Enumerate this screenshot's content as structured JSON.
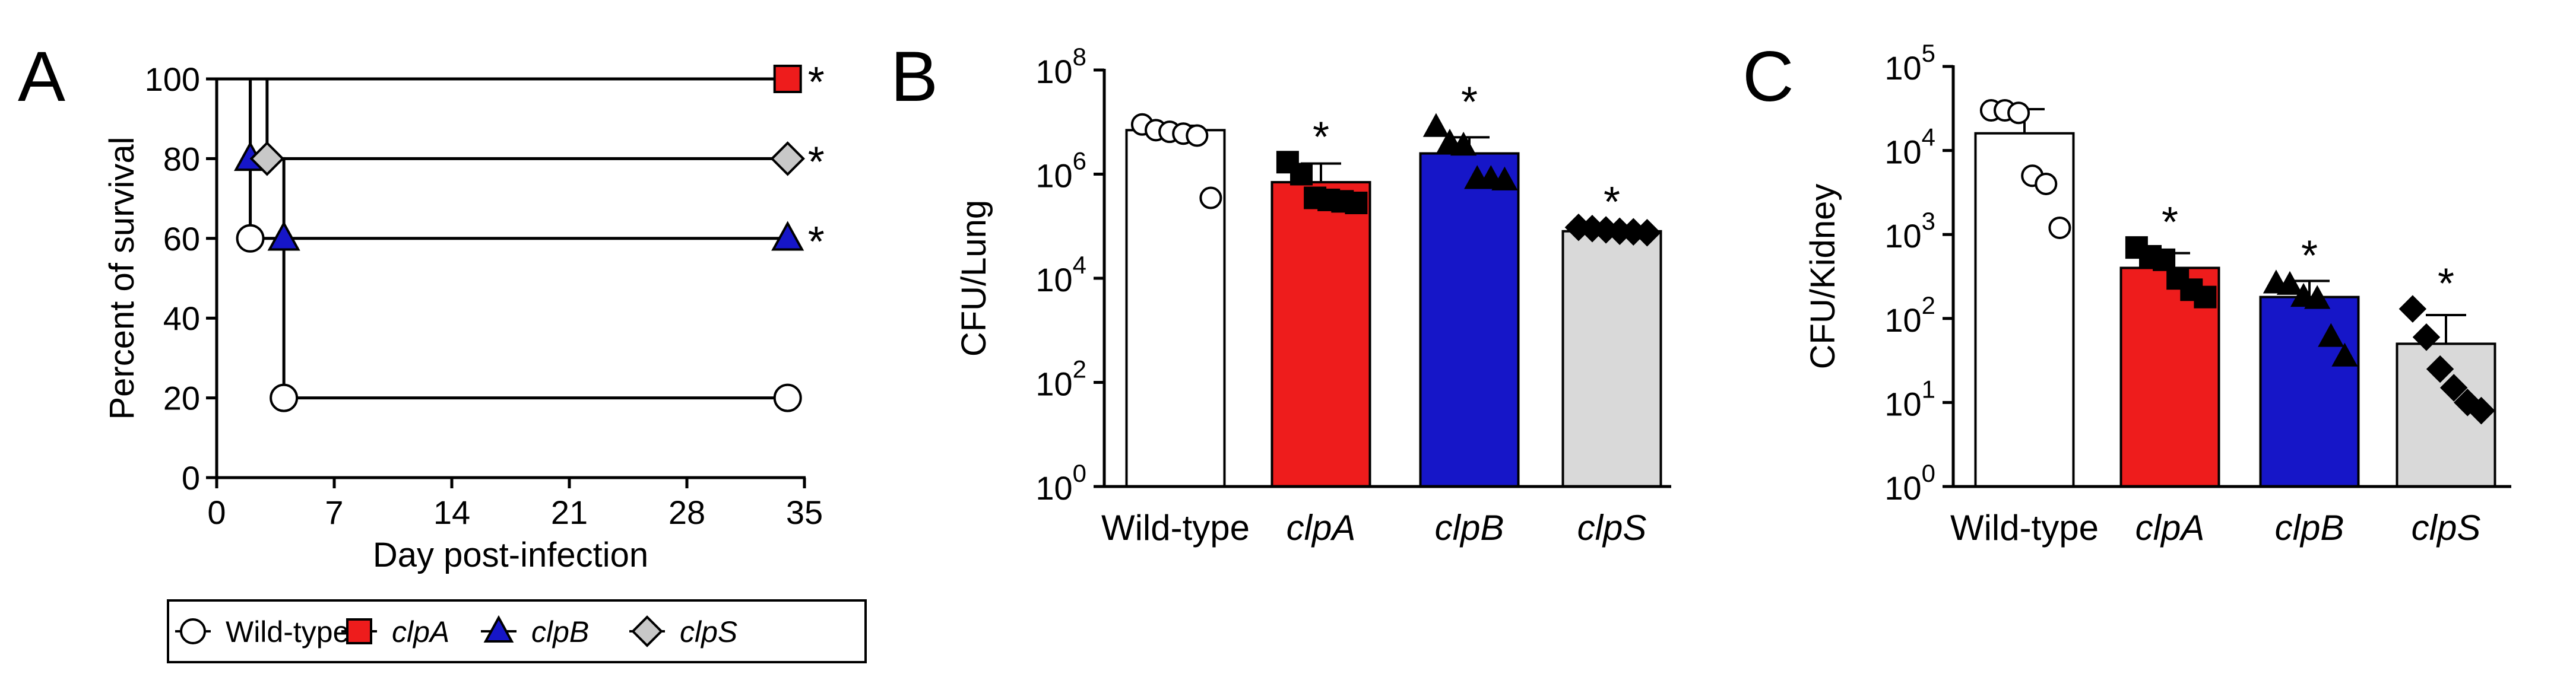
{
  "chart_data": [
    {
      "panel": "A",
      "type": "line",
      "subtype": "kaplan-meier",
      "xlabel": "Day post-infection",
      "ylabel": "Percent of survival",
      "xlim": [
        0,
        35
      ],
      "ylim": [
        0,
        100
      ],
      "xticks": [
        0,
        7,
        14,
        21,
        28,
        35
      ],
      "yticks": [
        0,
        20,
        40,
        60,
        80,
        100
      ],
      "series": [
        {
          "name": "Wild-type",
          "italic": false,
          "marker": "circle",
          "color": "#ffffff",
          "steps": [
            [
              0,
              100
            ],
            [
              2,
              60
            ],
            [
              4,
              20
            ],
            [
              34,
              20
            ]
          ],
          "marker_points": [
            [
              2,
              60
            ],
            [
              4,
              20
            ],
            [
              34,
              20
            ]
          ],
          "significant": false
        },
        {
          "name": "clpA",
          "italic": true,
          "marker": "square",
          "color": "#ee1c1c",
          "steps": [
            [
              0,
              100
            ],
            [
              34,
              100
            ]
          ],
          "marker_points": [
            [
              34,
              100
            ]
          ],
          "significant": true
        },
        {
          "name": "clpB",
          "italic": true,
          "marker": "triangle",
          "color": "#1616c8",
          "steps": [
            [
              0,
              100
            ],
            [
              2,
              80
            ],
            [
              4,
              60
            ],
            [
              34,
              60
            ]
          ],
          "marker_points": [
            [
              2,
              80
            ],
            [
              4,
              60
            ],
            [
              34,
              60
            ]
          ],
          "significant": true
        },
        {
          "name": "clpS",
          "italic": true,
          "marker": "diamond",
          "color": "#c8c8c8",
          "steps": [
            [
              0,
              100
            ],
            [
              3,
              80
            ],
            [
              34,
              80
            ]
          ],
          "marker_points": [
            [
              3,
              80
            ],
            [
              34,
              80
            ]
          ],
          "significant": true
        }
      ],
      "annotation": "*"
    },
    {
      "panel": "B",
      "type": "bar",
      "scale": "log",
      "ylabel": "CFU/Lung",
      "ylim": [
        1,
        100000000
      ],
      "yticks": [
        {
          "base": "10",
          "exp": "0"
        },
        {
          "base": "10",
          "exp": "2"
        },
        {
          "base": "10",
          "exp": "4"
        },
        {
          "base": "10",
          "exp": "6"
        },
        {
          "base": "10",
          "exp": "8"
        }
      ],
      "categories": [
        {
          "label": "Wild-type",
          "italic": false
        },
        {
          "label": "clpA",
          "italic": true
        },
        {
          "label": "clpB",
          "italic": true
        },
        {
          "label": "clpS",
          "italic": true
        }
      ],
      "values": [
        7000000,
        700000,
        2500000,
        80000
      ],
      "errors": [
        1500000,
        900000,
        2600000,
        8000
      ],
      "colors": [
        "#ffffff",
        "#ee1c1c",
        "#1616c8",
        "#d9d9d9"
      ],
      "markers": [
        "circle",
        "square",
        "triangle",
        "diamond"
      ],
      "points": [
        [
          9000000,
          7000000,
          6500000,
          6000000,
          5500000,
          350000
        ],
        [
          1700000,
          1000000,
          350000,
          320000,
          300000,
          280000
        ],
        [
          8000000,
          4000000,
          3500000,
          800000,
          800000,
          750000
        ],
        [
          95000,
          90000,
          85000,
          80000,
          78000,
          75000
        ]
      ],
      "annotations": [
        "",
        "*",
        "*",
        "*"
      ]
    },
    {
      "panel": "C",
      "type": "bar",
      "scale": "log",
      "ylabel": "CFU/Kidney",
      "ylim": [
        1,
        100000
      ],
      "yticks": [
        {
          "base": "10",
          "exp": "0"
        },
        {
          "base": "10",
          "exp": "1"
        },
        {
          "base": "10",
          "exp": "2"
        },
        {
          "base": "10",
          "exp": "3"
        },
        {
          "base": "10",
          "exp": "4"
        },
        {
          "base": "10",
          "exp": "5"
        }
      ],
      "categories": [
        {
          "label": "Wild-type",
          "italic": false
        },
        {
          "label": "clpA",
          "italic": true
        },
        {
          "label": "clpB",
          "italic": true
        },
        {
          "label": "clpS",
          "italic": true
        }
      ],
      "values": [
        16000,
        400,
        180,
        50
      ],
      "errors": [
        15000,
        200,
        100,
        60
      ],
      "colors": [
        "#ffffff",
        "#ee1c1c",
        "#1616c8",
        "#d9d9d9"
      ],
      "markers": [
        "circle",
        "square",
        "triangle",
        "diamond"
      ],
      "points": [
        [
          30000,
          30000,
          28000,
          5000,
          4000,
          1200
        ],
        [
          700,
          550,
          500,
          300,
          220,
          180
        ],
        [
          260,
          250,
          180,
          170,
          60,
          35
        ],
        [
          130,
          60,
          25,
          15,
          10,
          8
        ]
      ],
      "annotations": [
        "",
        "*",
        "*",
        "*"
      ]
    }
  ]
}
